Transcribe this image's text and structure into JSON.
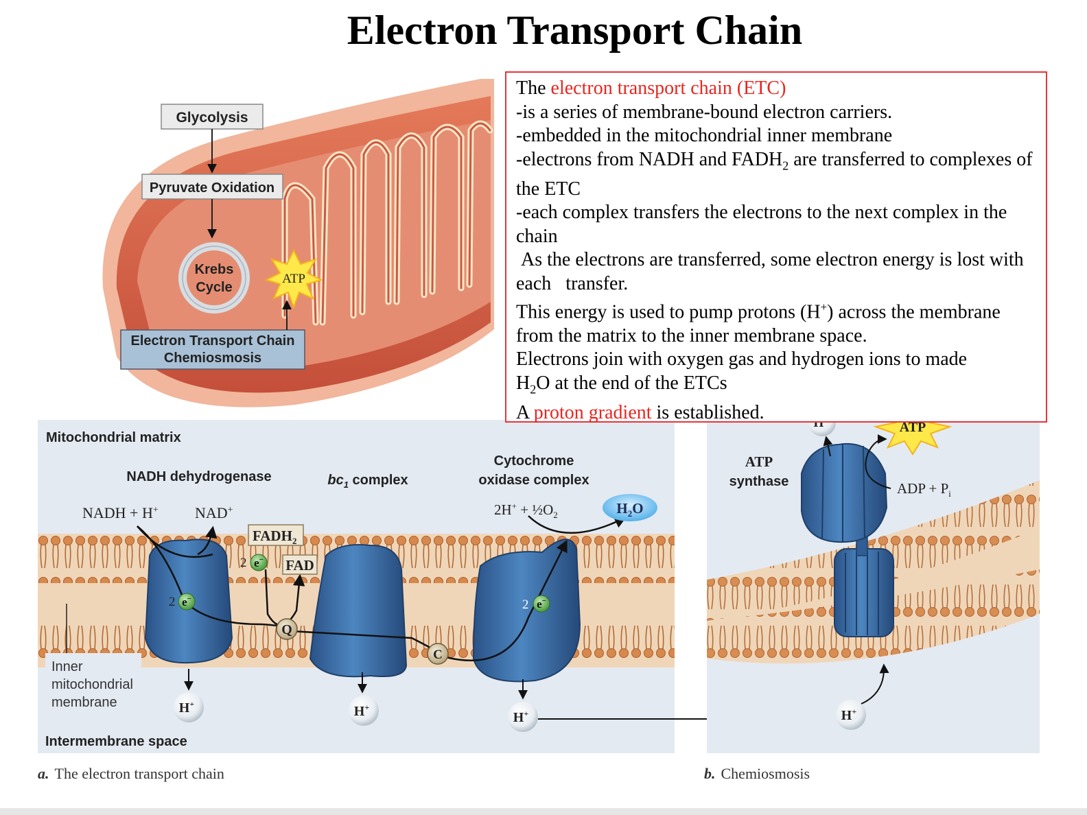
{
  "title": "Electron Transport Chain",
  "overview": {
    "steps": [
      "Glycolysis",
      "Pyruvate Oxidation",
      "Krebs",
      "Cycle",
      "Electron Transport Chain",
      "Chemiosmosis"
    ],
    "atp_label": "ATP"
  },
  "info": {
    "intro_prefix": "The ",
    "intro_highlight": "electron transport chain (ETC)",
    "lines": [
      "-is a series of membrane-bound electron carriers.",
      "-embedded in the mitochondrial inner membrane"
    ],
    "line3_a": "-electrons from NADH and FADH",
    "line3_sub": "2",
    "line3_b": " are transferred to complexes of the ETC",
    "line4": "-each complex transfers the electrons to the next complex in the chain",
    "line5": " As the electrons are transferred, some electron energy is lost with each   transfer.",
    "line6_a": "This energy is used to pump protons (H",
    "line6_sup": "+",
    "line6_b": ") across the membrane from the matrix to the inner membrane space.",
    "line7": "Electrons join with oxygen gas and hydrogen ions to made",
    "line8_a": "H",
    "line8_sub": "2",
    "line8_b": "O at the end of the ETCs",
    "line9_a": "A ",
    "line9_highlight": "proton gradient",
    "line9_b": " is established."
  },
  "panel_a": {
    "matrix_label": "Mitochondrial matrix",
    "intermembrane_label": "Intermembrane space",
    "inner_membrane_label": [
      "Inner",
      "mitochondrial",
      "membrane"
    ],
    "complex1_label": "NADH dehydrogenase",
    "complex2_label_italic": "bc",
    "complex2_label_sub": "1",
    "complex2_label_rest": " complex",
    "complex3_label": [
      "Cytochrome",
      "oxidase complex"
    ],
    "nadh_in": "NADH + H",
    "nad_out": "NAD",
    "fadh2": "FADH",
    "fadh2_sub": "2",
    "fad": "FAD",
    "electrons": "2",
    "electron_symbol": "e",
    "q": "Q",
    "c": "C",
    "oxygen_in": "2H",
    "oxygen_in_b": " + ½O",
    "oxygen_sub": "2",
    "water": "H",
    "water_sub": "2",
    "water_b": "O",
    "proton": "H",
    "caption_letter": "a.",
    "caption": "The electron transport chain"
  },
  "panel_b": {
    "synthase_label": [
      "ATP",
      "synthase"
    ],
    "atp": "ATP",
    "adp": "ADP + P",
    "adp_sub": "i",
    "proton": "H",
    "caption_letter": "b.",
    "caption": "Chemiosmosis"
  },
  "colors": {
    "accent_red": "#e8251f",
    "protein_blue": "#3d6fa8",
    "membrane_tan": "#e8c6a4",
    "panel_bg": "#e4eaf2"
  }
}
